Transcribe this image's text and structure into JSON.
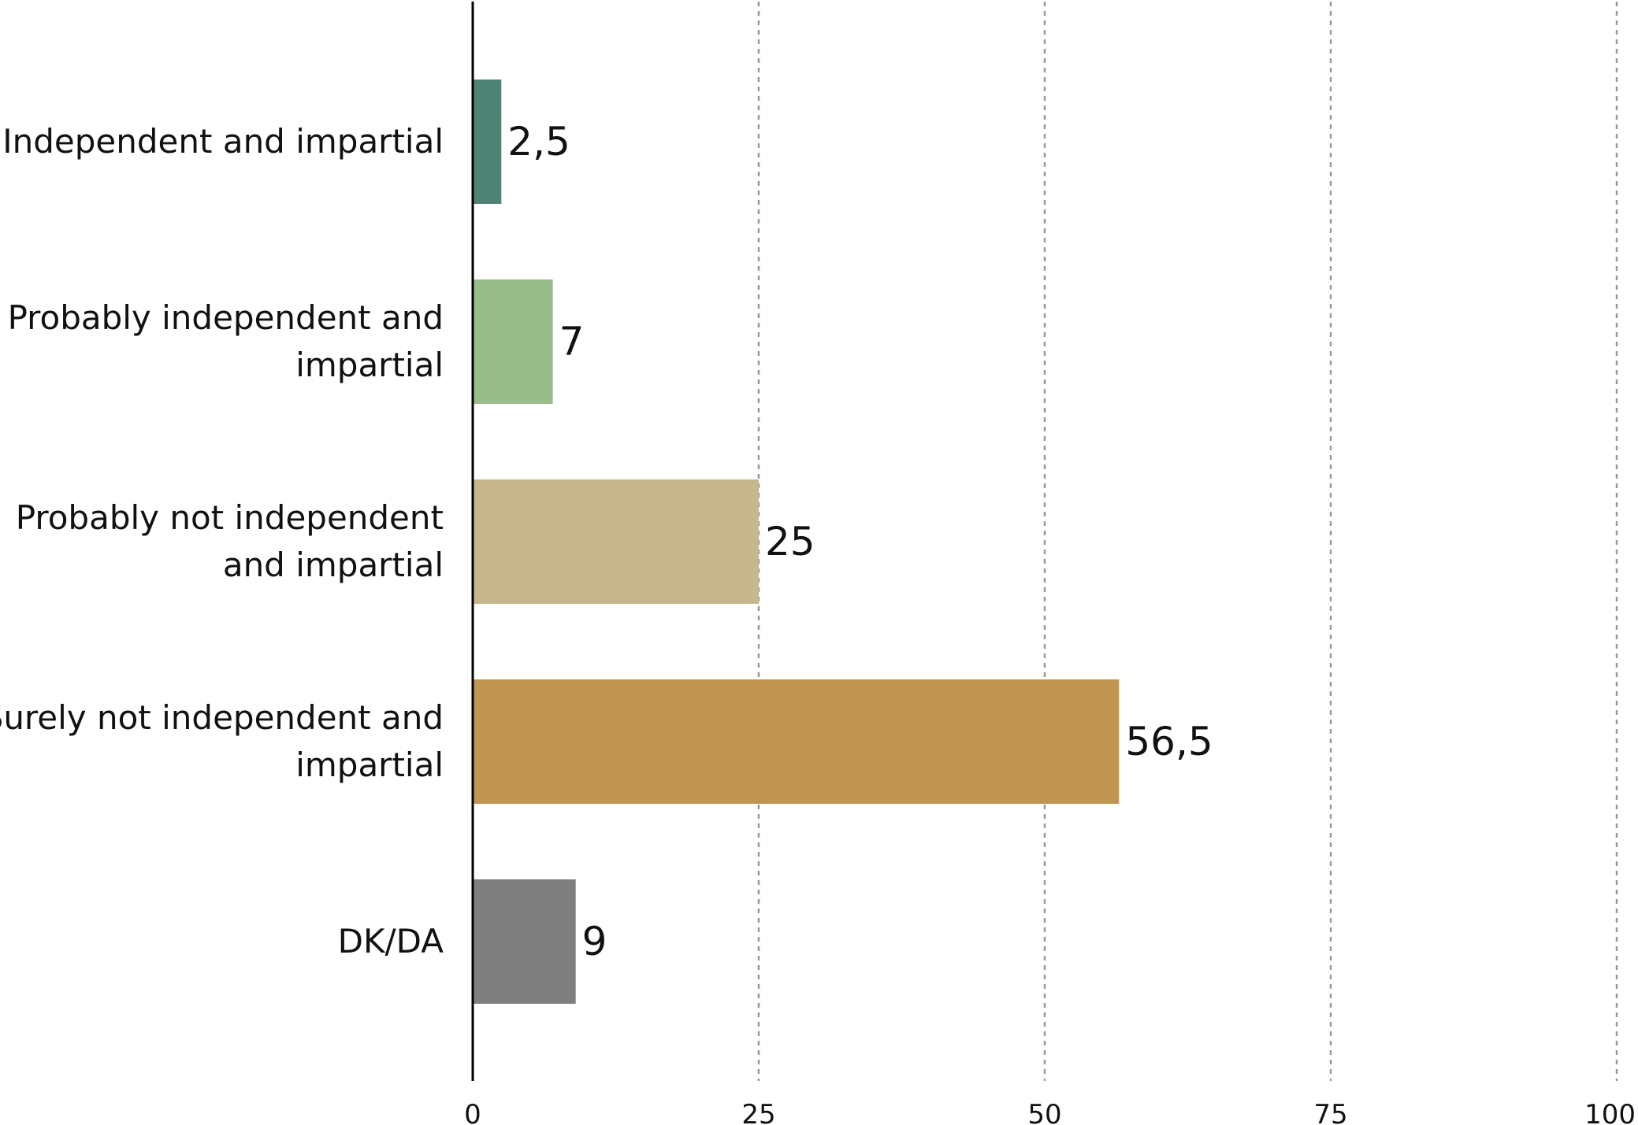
{
  "chart_data": {
    "type": "bar",
    "orientation": "horizontal",
    "categories": [
      [
        "Independent and impartial"
      ],
      [
        "Probably independent and",
        "impartial"
      ],
      [
        "Probably not independent",
        "and impartial"
      ],
      [
        "Surely not independent and",
        "impartial"
      ],
      [
        "DK/DA"
      ]
    ],
    "values": [
      2.5,
      7,
      25,
      56.5,
      9
    ],
    "value_labels": [
      "2,5",
      "7",
      "25",
      "56,5",
      "9"
    ],
    "colors": [
      "#4E8275",
      "#98BC8A",
      "#C6B88C",
      "#C1944F",
      "#7F7F7F"
    ],
    "xlim": [
      0,
      100
    ],
    "xticks": [
      0,
      25,
      50,
      75,
      100
    ],
    "grid": "vertical dashed",
    "legend": "none"
  }
}
